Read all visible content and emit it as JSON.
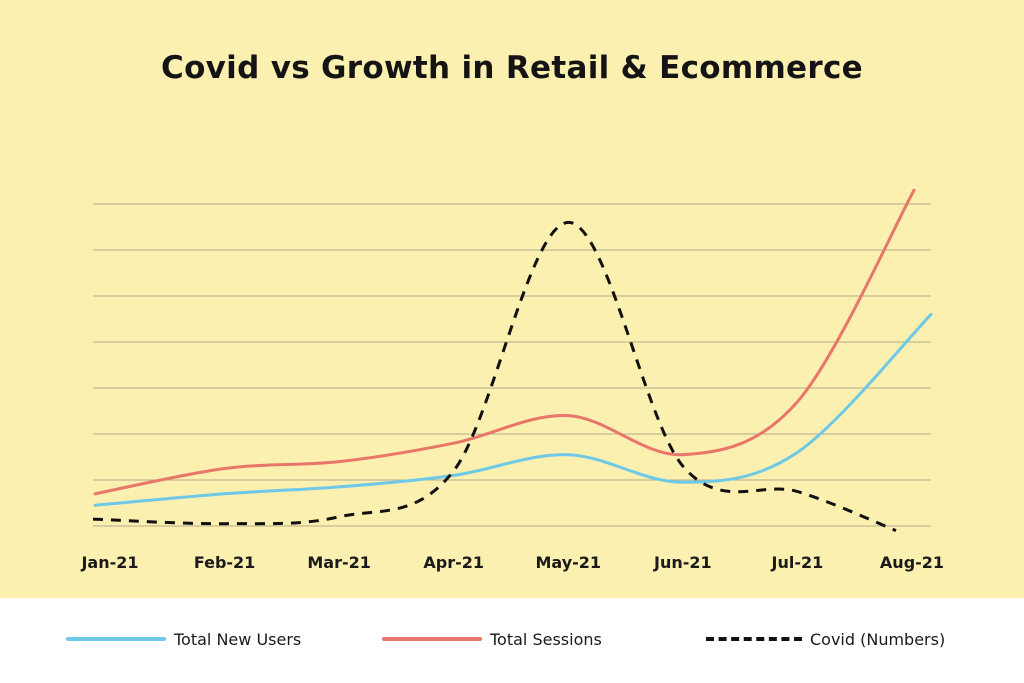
{
  "chart_data": {
    "type": "line",
    "title": "Covid vs Growth in Retail & Ecommerce",
    "categories": [
      "Jan-21",
      "Feb-21",
      "Mar-21",
      "Apr-21",
      "May-21",
      "Jun-21",
      "Jul-21",
      "Aug-21"
    ],
    "ylim": [
      0,
      7.2
    ],
    "grid": true,
    "legend_position": "bottom",
    "series": [
      {
        "name": "Total New Users",
        "color": "#6ec8e8",
        "style": "solid",
        "values": [
          0.45,
          0.7,
          0.85,
          1.1,
          1.55,
          0.95,
          1.6,
          4.6
        ]
      },
      {
        "name": "Total Sessions",
        "color": "#e8766a",
        "style": "solid",
        "values": [
          0.7,
          1.25,
          1.4,
          1.8,
          2.4,
          1.55,
          2.7,
          7.3
        ]
      },
      {
        "name": "Covid (Numbers)",
        "color": "#111111",
        "style": "dashed",
        "values": [
          0.15,
          0.05,
          0.2,
          1.2,
          6.6,
          1.3,
          0.75,
          -0.1
        ]
      }
    ],
    "background": "#fcf0b0",
    "grid_color": "#b5ad8a"
  }
}
